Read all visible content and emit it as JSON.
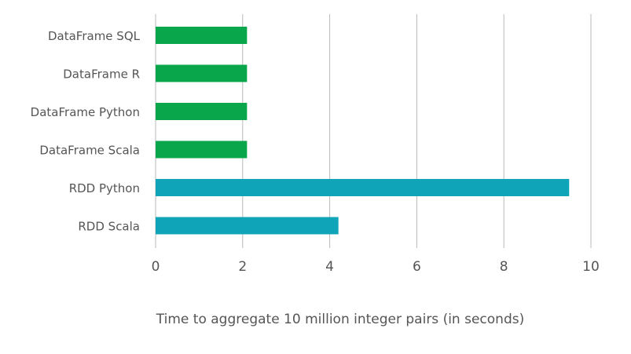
{
  "chart_data": {
    "type": "bar",
    "orientation": "horizontal",
    "title": "",
    "xlabel": "Time to aggregate 10 million integer pairs (in seconds)",
    "ylabel": "",
    "xlim": [
      0,
      10
    ],
    "xticks": [
      "0",
      "2",
      "4",
      "6",
      "8",
      "10"
    ],
    "grid": true,
    "legend": "none",
    "categories": [
      "DataFrame SQL",
      "DataFrame R",
      "DataFrame Python",
      "DataFrame Scala",
      "RDD Python",
      "RDD Scala"
    ],
    "values": [
      2.1,
      2.1,
      2.1,
      2.1,
      9.5,
      4.2
    ],
    "bar_colors": [
      "#0aa64c",
      "#0aa64c",
      "#0aa64c",
      "#0aa64c",
      "#10a4b8",
      "#10a4b8"
    ],
    "grid_color": "#b9b9b9",
    "text_color": "#555555"
  }
}
